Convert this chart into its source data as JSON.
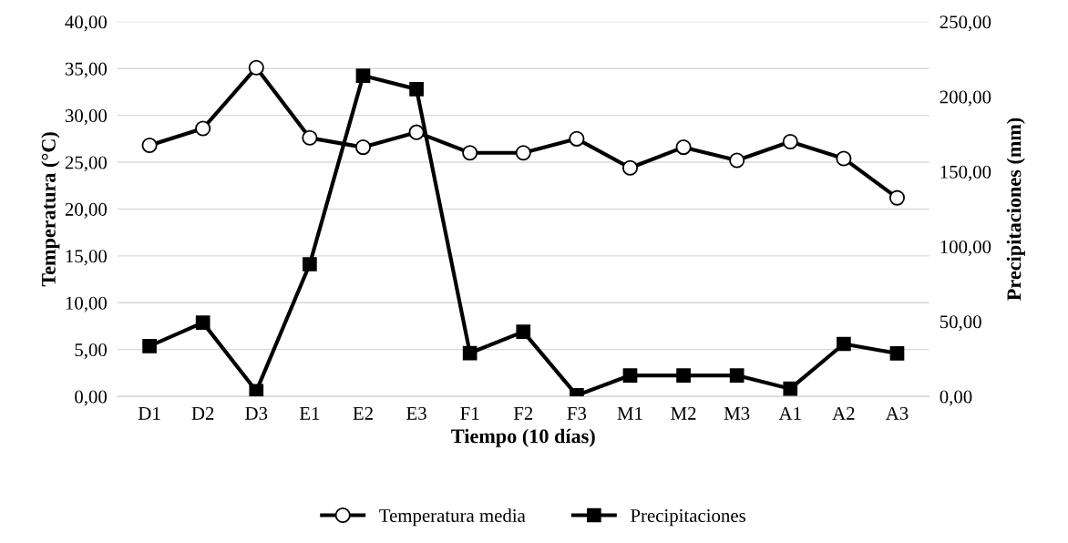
{
  "chart_data": {
    "type": "line",
    "xlabel": "Tiempo (10 días)",
    "ylabel": "Temperatura (°C)",
    "y2label": "Precipitaciones (mm)",
    "categories": [
      "D1",
      "D2",
      "D3",
      "E1",
      "E2",
      "E3",
      "F1",
      "F2",
      "F3",
      "M1",
      "M2",
      "M3",
      "A1",
      "A2",
      "A3"
    ],
    "series": [
      {
        "name": "Temperatura media",
        "color": "#000000",
        "marker": "circle",
        "values": [
          26.8,
          28.6,
          35.1,
          27.6,
          26.6,
          28.2,
          26.0,
          26.0,
          27.5,
          24.4,
          26.6,
          25.2,
          27.2,
          25.4,
          21.2
        ]
      },
      {
        "name": "Precipitaciones",
        "color": "#000000",
        "marker": "square",
        "axis": "y2",
        "values": [
          33.6,
          49.2,
          3.5,
          88.2,
          214,
          205,
          28.9,
          43.1,
          0.7,
          14,
          14,
          14,
          5.1,
          35.0,
          28.7
        ]
      }
    ],
    "ylim": [
      0,
      40
    ],
    "yticks": [
      {
        "value": 0,
        "label": "0,00"
      },
      {
        "value": 5,
        "label": "5,00"
      },
      {
        "value": 10,
        "label": "10,00"
      },
      {
        "value": 15,
        "label": "15,00"
      },
      {
        "value": 20,
        "label": "20,00"
      },
      {
        "value": 25,
        "label": "25,00"
      },
      {
        "value": 30,
        "label": "30,00"
      },
      {
        "value": 35,
        "label": "35,00"
      },
      {
        "value": 40,
        "label": "40,00"
      }
    ],
    "y2lim": [
      0,
      250
    ],
    "y2ticks": [
      {
        "value": 0,
        "label": "0,00"
      },
      {
        "value": 50,
        "label": "50,00"
      },
      {
        "value": 100,
        "label": "100,00"
      },
      {
        "value": 150,
        "label": "150,00"
      },
      {
        "value": 200,
        "label": "200,00"
      },
      {
        "value": 250,
        "label": "250,00"
      }
    ],
    "grid": "y",
    "legend": "bottom",
    "line_style": "solid"
  }
}
